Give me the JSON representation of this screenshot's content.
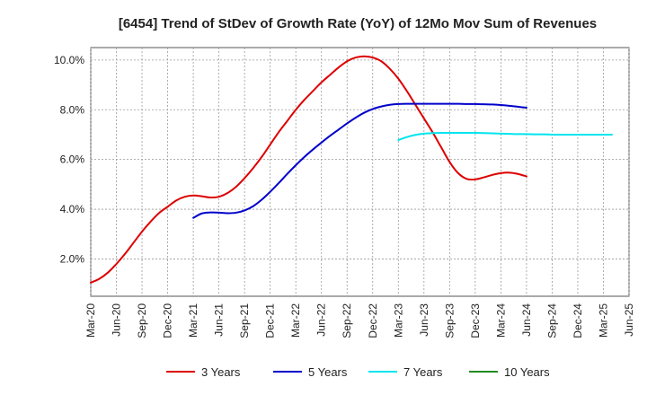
{
  "chart_data": {
    "type": "line",
    "title": "[6454]  Trend of StDev of Growth Rate (YoY) of 12Mo Mov Sum of Revenues",
    "xlabel": "",
    "ylabel": "",
    "ylim": [
      0.5,
      10.5
    ],
    "yticks": [
      2.0,
      4.0,
      6.0,
      8.0,
      10.0
    ],
    "ytick_labels": [
      "2.0%",
      "4.0%",
      "6.0%",
      "8.0%",
      "10.0%"
    ],
    "x_tick_labels": [
      "Mar-20",
      "Jun-20",
      "Sep-20",
      "Dec-20",
      "Mar-21",
      "Jun-21",
      "Sep-21",
      "Dec-21",
      "Mar-22",
      "Jun-22",
      "Sep-22",
      "Dec-22",
      "Mar-23",
      "Jun-23",
      "Sep-23",
      "Dec-23",
      "Mar-24",
      "Jun-24",
      "Sep-24",
      "Dec-24",
      "Mar-25",
      "Jun-25"
    ],
    "grid": true,
    "legend_position": "bottom",
    "series": [
      {
        "name": "3 Years",
        "color": "#dd0000",
        "points": [
          {
            "t": 0,
            "v": 1.05
          },
          {
            "t": 1,
            "v": 1.2
          },
          {
            "t": 2,
            "v": 1.45
          },
          {
            "t": 3,
            "v": 1.8
          },
          {
            "t": 4,
            "v": 2.2
          },
          {
            "t": 5,
            "v": 2.65
          },
          {
            "t": 6,
            "v": 3.1
          },
          {
            "t": 7,
            "v": 3.5
          },
          {
            "t": 8,
            "v": 3.85
          },
          {
            "t": 9,
            "v": 4.1
          },
          {
            "t": 10,
            "v": 4.35
          },
          {
            "t": 11,
            "v": 4.5
          },
          {
            "t": 12,
            "v": 4.55
          },
          {
            "t": 13,
            "v": 4.52
          },
          {
            "t": 14,
            "v": 4.47
          },
          {
            "t": 15,
            "v": 4.5
          },
          {
            "t": 16,
            "v": 4.65
          },
          {
            "t": 17,
            "v": 4.9
          },
          {
            "t": 18,
            "v": 5.25
          },
          {
            "t": 19,
            "v": 5.65
          },
          {
            "t": 20,
            "v": 6.1
          },
          {
            "t": 21,
            "v": 6.6
          },
          {
            "t": 22,
            "v": 7.1
          },
          {
            "t": 23,
            "v": 7.55
          },
          {
            "t": 24,
            "v": 8.0
          },
          {
            "t": 25,
            "v": 8.4
          },
          {
            "t": 26,
            "v": 8.75
          },
          {
            "t": 27,
            "v": 9.1
          },
          {
            "t": 28,
            "v": 9.4
          },
          {
            "t": 29,
            "v": 9.7
          },
          {
            "t": 30,
            "v": 9.95
          },
          {
            "t": 31,
            "v": 10.1
          },
          {
            "t": 32,
            "v": 10.15
          },
          {
            "t": 33,
            "v": 10.1
          },
          {
            "t": 34,
            "v": 9.95
          },
          {
            "t": 35,
            "v": 9.65
          },
          {
            "t": 36,
            "v": 9.25
          },
          {
            "t": 37,
            "v": 8.75
          },
          {
            "t": 38,
            "v": 8.2
          },
          {
            "t": 39,
            "v": 7.65
          },
          {
            "t": 40,
            "v": 7.1
          },
          {
            "t": 41,
            "v": 6.5
          },
          {
            "t": 42,
            "v": 5.9
          },
          {
            "t": 43,
            "v": 5.45
          },
          {
            "t": 44,
            "v": 5.22
          },
          {
            "t": 45,
            "v": 5.2
          },
          {
            "t": 46,
            "v": 5.28
          },
          {
            "t": 47,
            "v": 5.38
          },
          {
            "t": 48,
            "v": 5.45
          },
          {
            "t": 49,
            "v": 5.47
          },
          {
            "t": 50,
            "v": 5.42
          },
          {
            "t": 51,
            "v": 5.32
          }
        ]
      },
      {
        "name": "5 Years",
        "color": "#0000cc",
        "points": [
          {
            "t": 12,
            "v": 3.65
          },
          {
            "t": 13,
            "v": 3.83
          },
          {
            "t": 14,
            "v": 3.87
          },
          {
            "t": 15,
            "v": 3.86
          },
          {
            "t": 16,
            "v": 3.84
          },
          {
            "t": 17,
            "v": 3.86
          },
          {
            "t": 18,
            "v": 3.95
          },
          {
            "t": 19,
            "v": 4.12
          },
          {
            "t": 20,
            "v": 4.38
          },
          {
            "t": 21,
            "v": 4.7
          },
          {
            "t": 22,
            "v": 5.05
          },
          {
            "t": 23,
            "v": 5.42
          },
          {
            "t": 24,
            "v": 5.77
          },
          {
            "t": 25,
            "v": 6.1
          },
          {
            "t": 26,
            "v": 6.4
          },
          {
            "t": 27,
            "v": 6.68
          },
          {
            "t": 28,
            "v": 6.95
          },
          {
            "t": 29,
            "v": 7.2
          },
          {
            "t": 30,
            "v": 7.45
          },
          {
            "t": 31,
            "v": 7.68
          },
          {
            "t": 32,
            "v": 7.88
          },
          {
            "t": 33,
            "v": 8.03
          },
          {
            "t": 34,
            "v": 8.13
          },
          {
            "t": 35,
            "v": 8.2
          },
          {
            "t": 36,
            "v": 8.23
          },
          {
            "t": 37,
            "v": 8.24
          },
          {
            "t": 38,
            "v": 8.24
          },
          {
            "t": 39,
            "v": 8.24
          },
          {
            "t": 40,
            "v": 8.24
          },
          {
            "t": 41,
            "v": 8.24
          },
          {
            "t": 42,
            "v": 8.24
          },
          {
            "t": 43,
            "v": 8.24
          },
          {
            "t": 44,
            "v": 8.23
          },
          {
            "t": 45,
            "v": 8.23
          },
          {
            "t": 46,
            "v": 8.22
          },
          {
            "t": 47,
            "v": 8.21
          },
          {
            "t": 48,
            "v": 8.19
          },
          {
            "t": 49,
            "v": 8.16
          },
          {
            "t": 50,
            "v": 8.12
          },
          {
            "t": 51,
            "v": 8.08
          }
        ]
      },
      {
        "name": "7 Years",
        "color": "#00e5ee",
        "points": [
          {
            "t": 36,
            "v": 6.78
          },
          {
            "t": 37,
            "v": 6.9
          },
          {
            "t": 38,
            "v": 6.99
          },
          {
            "t": 39,
            "v": 7.04
          },
          {
            "t": 40,
            "v": 7.06
          },
          {
            "t": 41,
            "v": 7.07
          },
          {
            "t": 42,
            "v": 7.07
          },
          {
            "t": 43,
            "v": 7.07
          },
          {
            "t": 44,
            "v": 7.07
          },
          {
            "t": 45,
            "v": 7.07
          },
          {
            "t": 46,
            "v": 7.06
          },
          {
            "t": 47,
            "v": 7.05
          },
          {
            "t": 48,
            "v": 7.04
          },
          {
            "t": 49,
            "v": 7.03
          },
          {
            "t": 50,
            "v": 7.02
          },
          {
            "t": 51,
            "v": 7.02
          },
          {
            "t": 52,
            "v": 7.01
          },
          {
            "t": 53,
            "v": 7.01
          },
          {
            "t": 54,
            "v": 7.0
          },
          {
            "t": 55,
            "v": 7.0
          },
          {
            "t": 56,
            "v": 7.0
          },
          {
            "t": 57,
            "v": 7.0
          },
          {
            "t": 58,
            "v": 7.0
          },
          {
            "t": 59,
            "v": 7.0
          },
          {
            "t": 60,
            "v": 7.0
          },
          {
            "t": 61,
            "v": 7.0
          }
        ]
      },
      {
        "name": "10 Years",
        "color": "#228b22",
        "points": []
      }
    ]
  }
}
